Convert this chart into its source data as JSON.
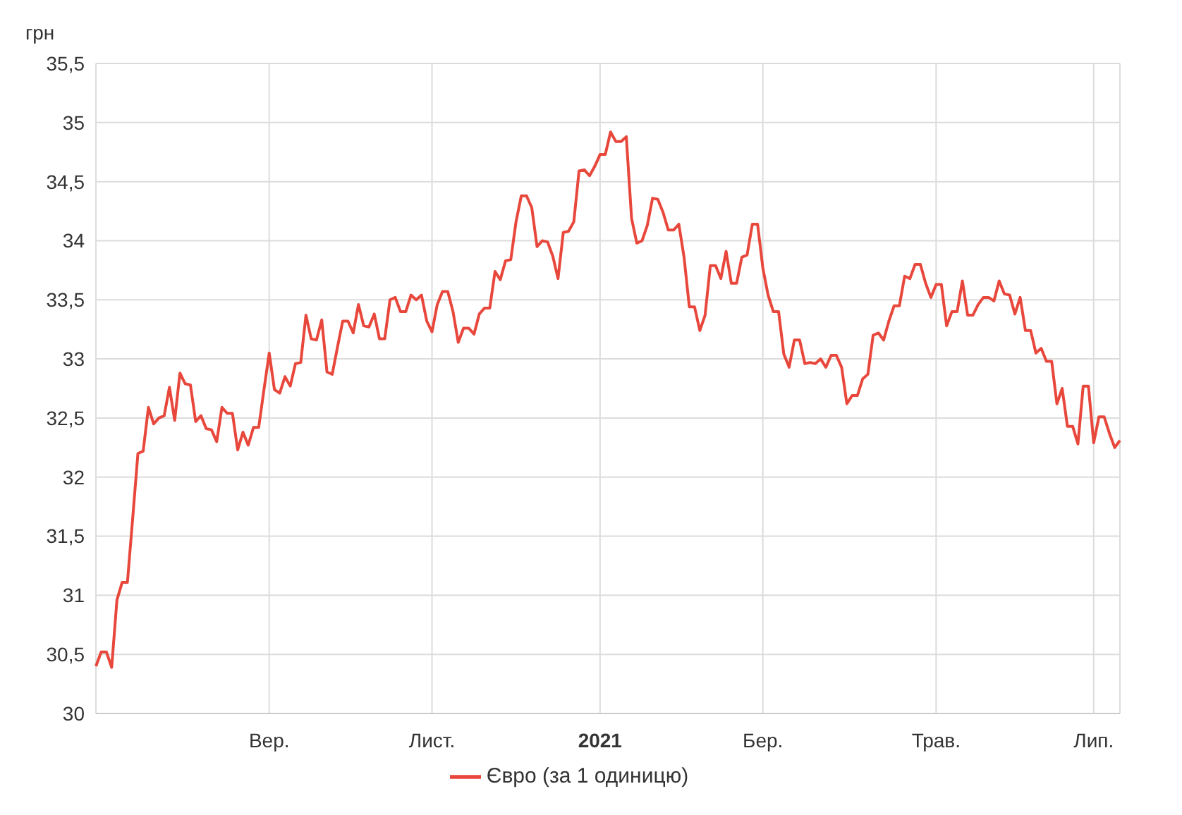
{
  "chart_data": {
    "type": "line",
    "ylabel": "грн",
    "legend": "bottom",
    "grid": true,
    "marker": "none",
    "line_style": "solid",
    "categories": [
      null,
      null,
      null,
      null,
      null,
      null,
      null,
      null,
      null,
      null,
      null,
      null,
      null,
      null,
      null,
      null,
      null,
      null,
      null,
      null,
      null,
      null,
      null,
      null,
      null,
      null,
      null,
      null,
      null,
      null,
      null,
      null,
      null,
      "Вер.",
      null,
      null,
      null,
      null,
      null,
      null,
      null,
      null,
      null,
      null,
      null,
      null,
      null,
      null,
      null,
      null,
      null,
      null,
      null,
      null,
      null,
      null,
      null,
      null,
      null,
      null,
      null,
      null,
      null,
      null,
      "Лист.",
      null,
      null,
      null,
      null,
      null,
      null,
      null,
      null,
      null,
      null,
      null,
      null,
      null,
      null,
      null,
      null,
      null,
      null,
      null,
      null,
      null,
      null,
      null,
      null,
      null,
      null,
      null,
      null,
      null,
      null,
      null,
      "2021",
      null,
      null,
      null,
      null,
      null,
      null,
      null,
      null,
      null,
      null,
      null,
      null,
      null,
      null,
      null,
      null,
      null,
      null,
      null,
      null,
      null,
      null,
      null,
      null,
      null,
      null,
      null,
      null,
      null,
      null,
      "Бер.",
      null,
      null,
      null,
      null,
      null,
      null,
      null,
      null,
      null,
      null,
      null,
      null,
      null,
      null,
      null,
      null,
      null,
      null,
      null,
      null,
      null,
      null,
      null,
      null,
      null,
      null,
      null,
      null,
      null,
      null,
      null,
      null,
      "Трав.",
      null,
      null,
      null,
      null,
      null,
      null,
      null,
      null,
      null,
      null,
      null,
      null,
      null,
      null,
      null,
      null,
      null,
      null,
      null,
      null,
      null,
      null,
      null,
      null,
      null,
      null,
      null,
      null,
      null,
      "Лип.",
      null,
      null,
      null,
      null,
      null
    ],
    "ylim": [
      30,
      35.5
    ],
    "yticks": [
      30,
      {
        "value": 30.5,
        "label": "30,5"
      },
      31,
      {
        "value": 31.5,
        "label": "31,5"
      },
      32,
      {
        "value": 32.5,
        "label": "32,5"
      },
      33,
      {
        "value": 33.5,
        "label": "33,5"
      },
      34,
      {
        "value": 34.5,
        "label": "34,5"
      },
      35,
      {
        "value": 35.5,
        "label": "35,5"
      }
    ],
    "series": [
      {
        "name": "Євро (за 1 одиницю)",
        "color": "#e8473c",
        "values": [
          30.4,
          30.52,
          30.52,
          30.39,
          30.96,
          31.11,
          31.11,
          31.65,
          32.2,
          32.22,
          32.59,
          32.45,
          32.5,
          32.52,
          32.76,
          32.48,
          32.88,
          32.79,
          32.78,
          32.47,
          32.52,
          32.41,
          32.4,
          32.3,
          32.59,
          32.54,
          32.54,
          32.23,
          32.38,
          32.27,
          32.42,
          32.42,
          32.74,
          33.05,
          32.74,
          32.71,
          32.85,
          32.77,
          32.96,
          32.97,
          33.37,
          33.17,
          33.16,
          33.33,
          32.89,
          32.87,
          33.1,
          33.32,
          33.32,
          33.22,
          33.46,
          33.28,
          33.27,
          33.38,
          33.17,
          33.17,
          33.5,
          33.52,
          33.4,
          33.4,
          33.54,
          33.5,
          33.54,
          33.32,
          33.23,
          33.46,
          33.57,
          33.57,
          33.4,
          33.14,
          33.26,
          33.26,
          33.21,
          33.38,
          33.43,
          33.43,
          33.74,
          33.67,
          33.83,
          33.84,
          34.16,
          34.38,
          34.38,
          34.28,
          33.95,
          34.0,
          33.99,
          33.87,
          33.68,
          34.07,
          34.08,
          34.16,
          34.59,
          34.6,
          34.55,
          34.63,
          34.73,
          34.73,
          34.92,
          34.84,
          34.84,
          34.88,
          34.19,
          33.98,
          34.0,
          34.13,
          34.36,
          34.35,
          34.24,
          34.09,
          34.09,
          34.14,
          33.86,
          33.44,
          33.44,
          33.24,
          33.37,
          33.79,
          33.79,
          33.68,
          33.91,
          33.64,
          33.64,
          33.86,
          33.88,
          34.14,
          34.14,
          33.77,
          33.54,
          33.4,
          33.4,
          33.04,
          32.93,
          33.16,
          33.16,
          32.96,
          32.97,
          32.96,
          33.0,
          32.93,
          33.03,
          33.03,
          32.93,
          32.62,
          32.69,
          32.69,
          32.83,
          32.87,
          33.2,
          33.22,
          33.16,
          33.32,
          33.45,
          33.45,
          33.7,
          33.68,
          33.8,
          33.8,
          33.64,
          33.52,
          33.63,
          33.63,
          33.28,
          33.4,
          33.4,
          33.66,
          33.37,
          33.37,
          33.46,
          33.52,
          33.52,
          33.49,
          33.66,
          33.55,
          33.54,
          33.38,
          33.52,
          33.24,
          33.24,
          33.05,
          33.09,
          32.98,
          32.98,
          32.62,
          32.75,
          32.43,
          32.43,
          32.28,
          32.77,
          32.77,
          32.29,
          32.51,
          32.51,
          32.37,
          32.25,
          32.31
        ]
      }
    ]
  }
}
